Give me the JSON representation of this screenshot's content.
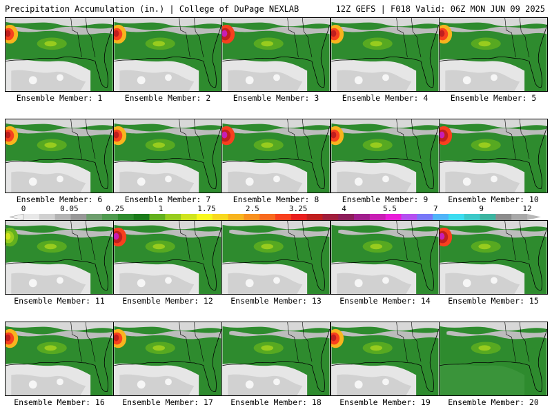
{
  "header": {
    "left": "Precipitation Accumulation (in.) | College of DuPage NEXLAB",
    "right": "12Z GEFS | F018 Valid: 06Z MON JUN 09 2025"
  },
  "colorbar": {
    "tick_labels": [
      "0",
      "0.05",
      "0.25",
      "1",
      "1.75",
      "2.5",
      "3.25",
      "4",
      "5.5",
      "7",
      "9",
      "12"
    ],
    "colors": [
      "#e8e8e8",
      "#d0d0d0",
      "#b4b4b4",
      "#989898",
      "#6e9e6e",
      "#4f9a4f",
      "#2e8b2e",
      "#1a7a1a",
      "#62b01e",
      "#98cc1e",
      "#d0e41e",
      "#f8f81e",
      "#f8d81e",
      "#f8b41e",
      "#f8901e",
      "#f86a1e",
      "#f8401e",
      "#e81e1e",
      "#c01e1e",
      "#a01e3c",
      "#8c1e5a",
      "#a01e8c",
      "#c81eb4",
      "#e81ed8",
      "#b450f0",
      "#7878f8",
      "#50b4f8",
      "#3cdcf0",
      "#3cc8c8",
      "#3cb4a0",
      "#8c8c8c",
      "#a8a8a8"
    ]
  },
  "panels": [
    {
      "label": "Ensemble Member: 1",
      "blob": "red",
      "south": "gray"
    },
    {
      "label": "Ensemble Member: 2",
      "blob": "red",
      "south": "gray"
    },
    {
      "label": "Ensemble Member: 3",
      "blob": "magenta",
      "south": "gray"
    },
    {
      "label": "Ensemble Member: 4",
      "blob": "red",
      "south": "gray"
    },
    {
      "label": "Ensemble Member: 5",
      "blob": "red",
      "south": "gray"
    },
    {
      "label": "Ensemble Member: 6",
      "blob": "red",
      "south": "gray"
    },
    {
      "label": "Ensemble Member: 7",
      "blob": "red",
      "south": "gray"
    },
    {
      "label": "Ensemble Member: 8",
      "blob": "magenta",
      "south": "gray"
    },
    {
      "label": "Ensemble Member: 9",
      "blob": "red",
      "south": "gray"
    },
    {
      "label": "Ensemble Member: 10",
      "blob": "magenta",
      "south": "gray"
    },
    {
      "label": "Ensemble Member: 11",
      "blob": "green",
      "south": "gray"
    },
    {
      "label": "Ensemble Member: 12",
      "blob": "magenta",
      "south": "gray"
    },
    {
      "label": "Ensemble Member: 13",
      "blob": "none",
      "south": "gray"
    },
    {
      "label": "Ensemble Member: 14",
      "blob": "none",
      "south": "gray"
    },
    {
      "label": "Ensemble Member: 15",
      "blob": "magenta",
      "south": "gray"
    },
    {
      "label": "Ensemble Member: 16",
      "blob": "red",
      "south": "gray"
    },
    {
      "label": "Ensemble Member: 17",
      "blob": "red",
      "south": "gray"
    },
    {
      "label": "Ensemble Member: 18",
      "blob": "none",
      "south": "gray"
    },
    {
      "label": "Ensemble Member: 19",
      "blob": "red",
      "south": "gray"
    },
    {
      "label": "Ensemble Member: 20",
      "blob": "none",
      "south": "green"
    }
  ]
}
